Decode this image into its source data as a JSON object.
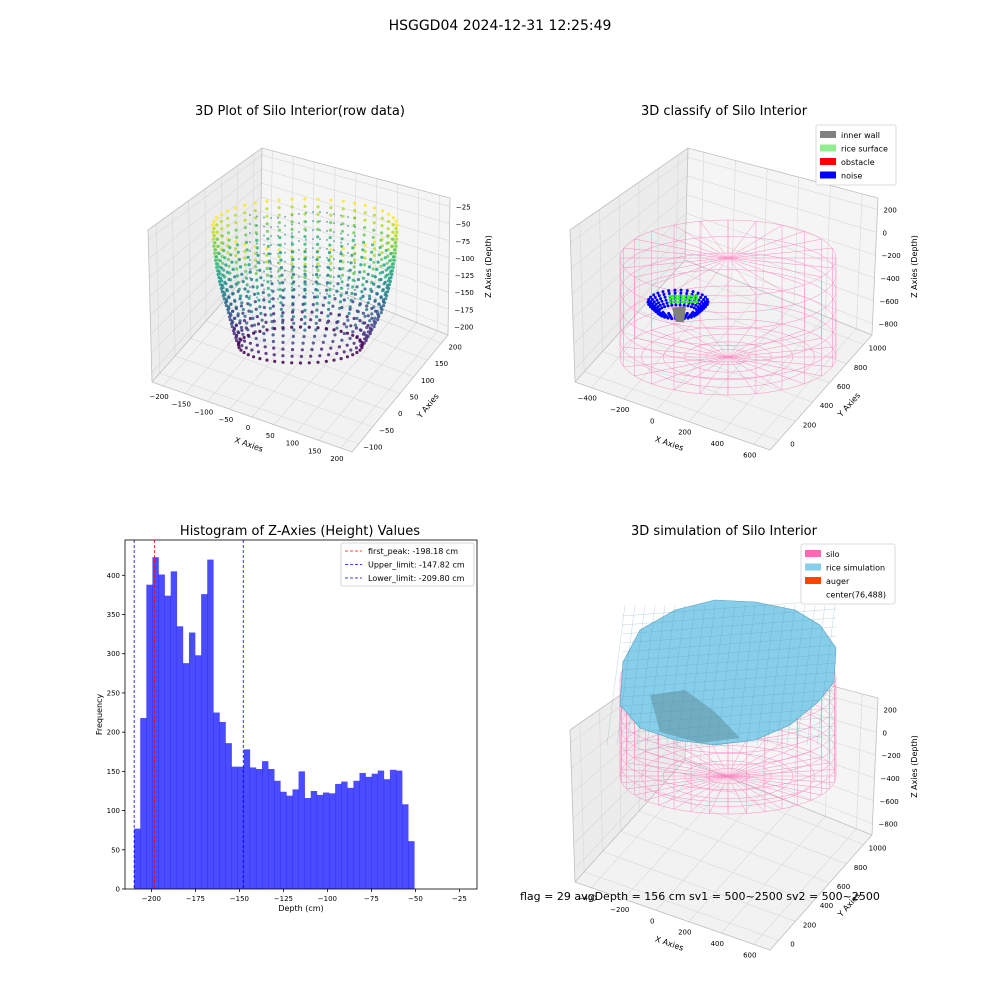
{
  "figure": {
    "suptitle": "HSGGD04 2024-12-31 12:25:49",
    "footer": "flag = 29  avgDepth = 156 cm  sv1 = 500~2500  sv2 = 500~2500"
  },
  "chart_data": [
    {
      "type": "scatter",
      "title": "3D Plot of Silo Interior(row data)",
      "xlabel": "X Axies",
      "ylabel": "Y Axies",
      "zlabel": "Z Axies (Depth)",
      "xticks": [
        "−200",
        "−150",
        "−100",
        "−50",
        "0",
        "50",
        "100",
        "150",
        "200"
      ],
      "yticks": [
        "−100",
        "−50",
        "0",
        "50",
        "100",
        "150",
        "200"
      ],
      "zticks": [
        "−25",
        "−50",
        "−75",
        "−100",
        "−125",
        "−150",
        "−175",
        "−200"
      ],
      "xlim": [
        -200,
        200
      ],
      "ylim": [
        -100,
        200
      ],
      "zlim": [
        -210,
        -20
      ],
      "colormap": "viridis"
    },
    {
      "type": "scatter",
      "title": "3D classify of Silo Interior",
      "xlabel": "X Axies",
      "ylabel": "Y Axies",
      "zlabel": "Z Axies (Depth)",
      "xticks": [
        "−400",
        "−200",
        "0",
        "200",
        "400",
        "600"
      ],
      "yticks": [
        "0",
        "200",
        "400",
        "600",
        "800",
        "1000"
      ],
      "zticks": [
        "200",
        "0",
        "−200",
        "−400",
        "−600",
        "−800"
      ],
      "legend": {
        "position": "upper-right",
        "items": [
          {
            "label": "inner wall",
            "color": "#808080"
          },
          {
            "label": "rice surface",
            "color": "#90ee90"
          },
          {
            "label": "obstacle",
            "color": "#ff0000"
          },
          {
            "label": "noise",
            "color": "#0000ff"
          }
        ]
      },
      "silo_color": "#ff69b4"
    },
    {
      "type": "bar",
      "title": "Histogram of Z-Axies (Height) Values",
      "xlabel": "Depth (cm)",
      "ylabel": "Frequency",
      "xlim": [
        -215,
        -15
      ],
      "ylim": [
        0,
        445
      ],
      "xticks": [
        -200,
        -175,
        -150,
        -125,
        -100,
        -75,
        -50,
        -25
      ],
      "yticks": [
        0,
        50,
        100,
        150,
        200,
        250,
        300,
        350,
        400
      ],
      "bin_start": -209.8,
      "bin_width": 3.46,
      "values": [
        77,
        218,
        388,
        423,
        401,
        374,
        405,
        335,
        288,
        327,
        298,
        376,
        420,
        225,
        213,
        186,
        156,
        156,
        178,
        155,
        153,
        163,
        153,
        138,
        124,
        119,
        127,
        150,
        116,
        125,
        120,
        123,
        122,
        134,
        137,
        129,
        138,
        148,
        143,
        147,
        151,
        140,
        152,
        151,
        108,
        61
      ],
      "bar_color": "#0000ff",
      "bar_opacity": 0.7,
      "lines": [
        {
          "label": "first_peak: -198.18 cm",
          "x": -198.18,
          "color": "#ff0000"
        },
        {
          "label": "Upper_limit: -147.82 cm",
          "x": -147.82,
          "color": "#0000ff"
        },
        {
          "label": "Lower_limit: -209.80 cm",
          "x": -209.8,
          "color": "#0000cc"
        }
      ],
      "legend_position": "upper-right"
    },
    {
      "type": "surface",
      "title": "3D simulation of Silo Interior",
      "xlabel": "X Axies",
      "ylabel": "Y Axies",
      "zlabel": "Z Axies (Depth)",
      "xticks": [
        "−400",
        "−200",
        "0",
        "200",
        "400",
        "600"
      ],
      "yticks": [
        "0",
        "200",
        "400",
        "600",
        "800",
        "1000"
      ],
      "zticks": [
        "200",
        "0",
        "−200",
        "−400",
        "−600",
        "−800"
      ],
      "legend": {
        "position": "upper-right",
        "items": [
          {
            "label": "silo",
            "color": "#ff69b4"
          },
          {
            "label": "rice simulation",
            "color": "#87ceeb"
          },
          {
            "label": "auger",
            "color": "#ff4500"
          },
          {
            "label": "center(76,488)",
            "color": ""
          }
        ]
      }
    }
  ]
}
